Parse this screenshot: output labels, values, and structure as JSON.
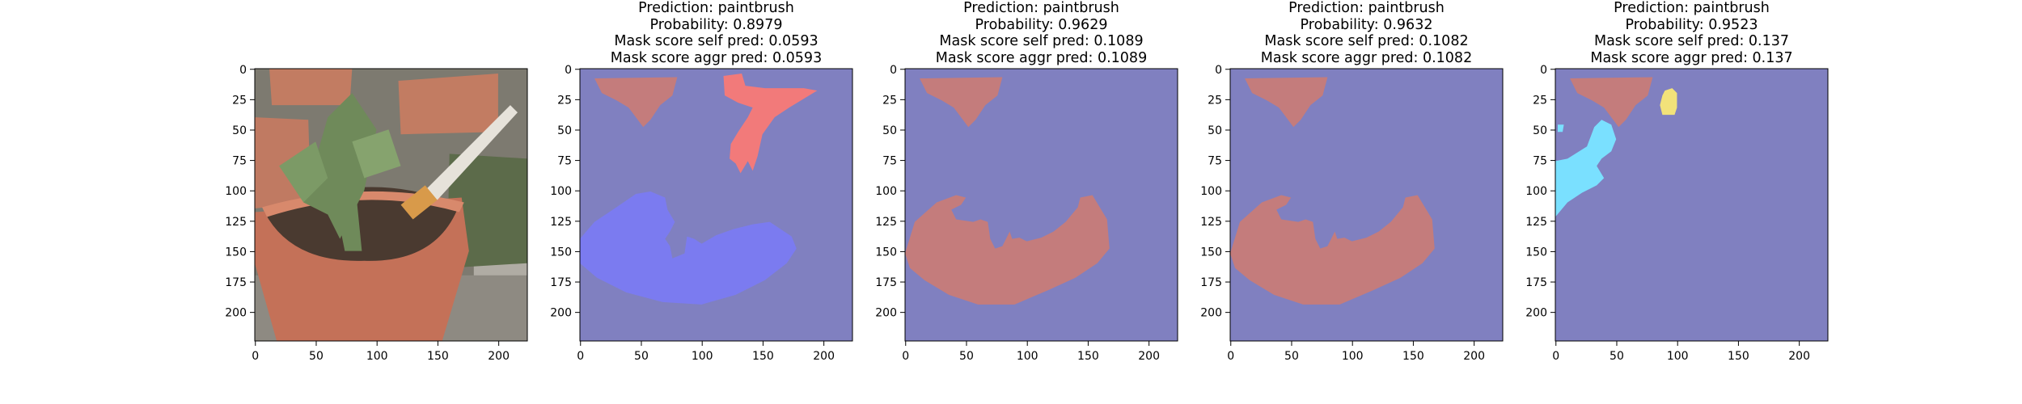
{
  "colors": {
    "background": "#8080c0",
    "salmon": "#c47c7c",
    "red": "#f27a7a",
    "blue": "#7b7bf0",
    "cyan": "#7ae0ff",
    "yellow": "#f2e27a"
  },
  "chart_data": [
    {
      "type": "image",
      "image": "potted-plant-photo",
      "xlim": [
        0,
        224
      ],
      "ylim": [
        224,
        0
      ],
      "xticks": [
        0,
        50,
        100,
        150,
        200
      ],
      "yticks": [
        0,
        25,
        50,
        75,
        100,
        125,
        150,
        175,
        200
      ],
      "title_lines": []
    },
    {
      "type": "heatmap",
      "xlim": [
        0,
        224
      ],
      "ylim": [
        224,
        0
      ],
      "xticks": [
        0,
        50,
        100,
        150,
        200
      ],
      "yticks": [
        0,
        25,
        50,
        75,
        100,
        125,
        150,
        175,
        200
      ],
      "title_lines": [
        "Prediction: paintbrush",
        "Probability: 0.8979",
        "Mask score self pred: 0.0593",
        "Mask score aggr pred: 0.0593"
      ],
      "segments": [
        "salmon-top",
        "red-brush",
        "blue-pot"
      ]
    },
    {
      "type": "heatmap",
      "xlim": [
        0,
        224
      ],
      "ylim": [
        224,
        0
      ],
      "xticks": [
        0,
        50,
        100,
        150,
        200
      ],
      "yticks": [
        0,
        25,
        50,
        75,
        100,
        125,
        150,
        175,
        200
      ],
      "title_lines": [
        "Prediction: paintbrush",
        "Probability: 0.9629",
        "Mask score self pred: 0.1089",
        "Mask score aggr pred: 0.1089"
      ],
      "segments": [
        "salmon-top",
        "salmon-pot"
      ]
    },
    {
      "type": "heatmap",
      "xlim": [
        0,
        224
      ],
      "ylim": [
        224,
        0
      ],
      "xticks": [
        0,
        50,
        100,
        150,
        200
      ],
      "yticks": [
        0,
        25,
        50,
        75,
        100,
        125,
        150,
        175,
        200
      ],
      "title_lines": [
        "Prediction: paintbrush",
        "Probability: 0.9632",
        "Mask score self pred: 0.1082",
        "Mask score aggr pred: 0.1082"
      ],
      "segments": [
        "salmon-top",
        "salmon-pot"
      ]
    },
    {
      "type": "heatmap",
      "xlim": [
        0,
        224
      ],
      "ylim": [
        224,
        0
      ],
      "xticks": [
        0,
        50,
        100,
        150,
        200
      ],
      "yticks": [
        0,
        25,
        50,
        75,
        100,
        125,
        150,
        175,
        200
      ],
      "title_lines": [
        "Prediction: paintbrush",
        "Probability: 0.9523",
        "Mask score self pred: 0.137",
        "Mask score aggr pred: 0.137"
      ],
      "segments": [
        "salmon-top",
        "yellow-blob",
        "cyan-left",
        "cyan-dot"
      ]
    }
  ]
}
